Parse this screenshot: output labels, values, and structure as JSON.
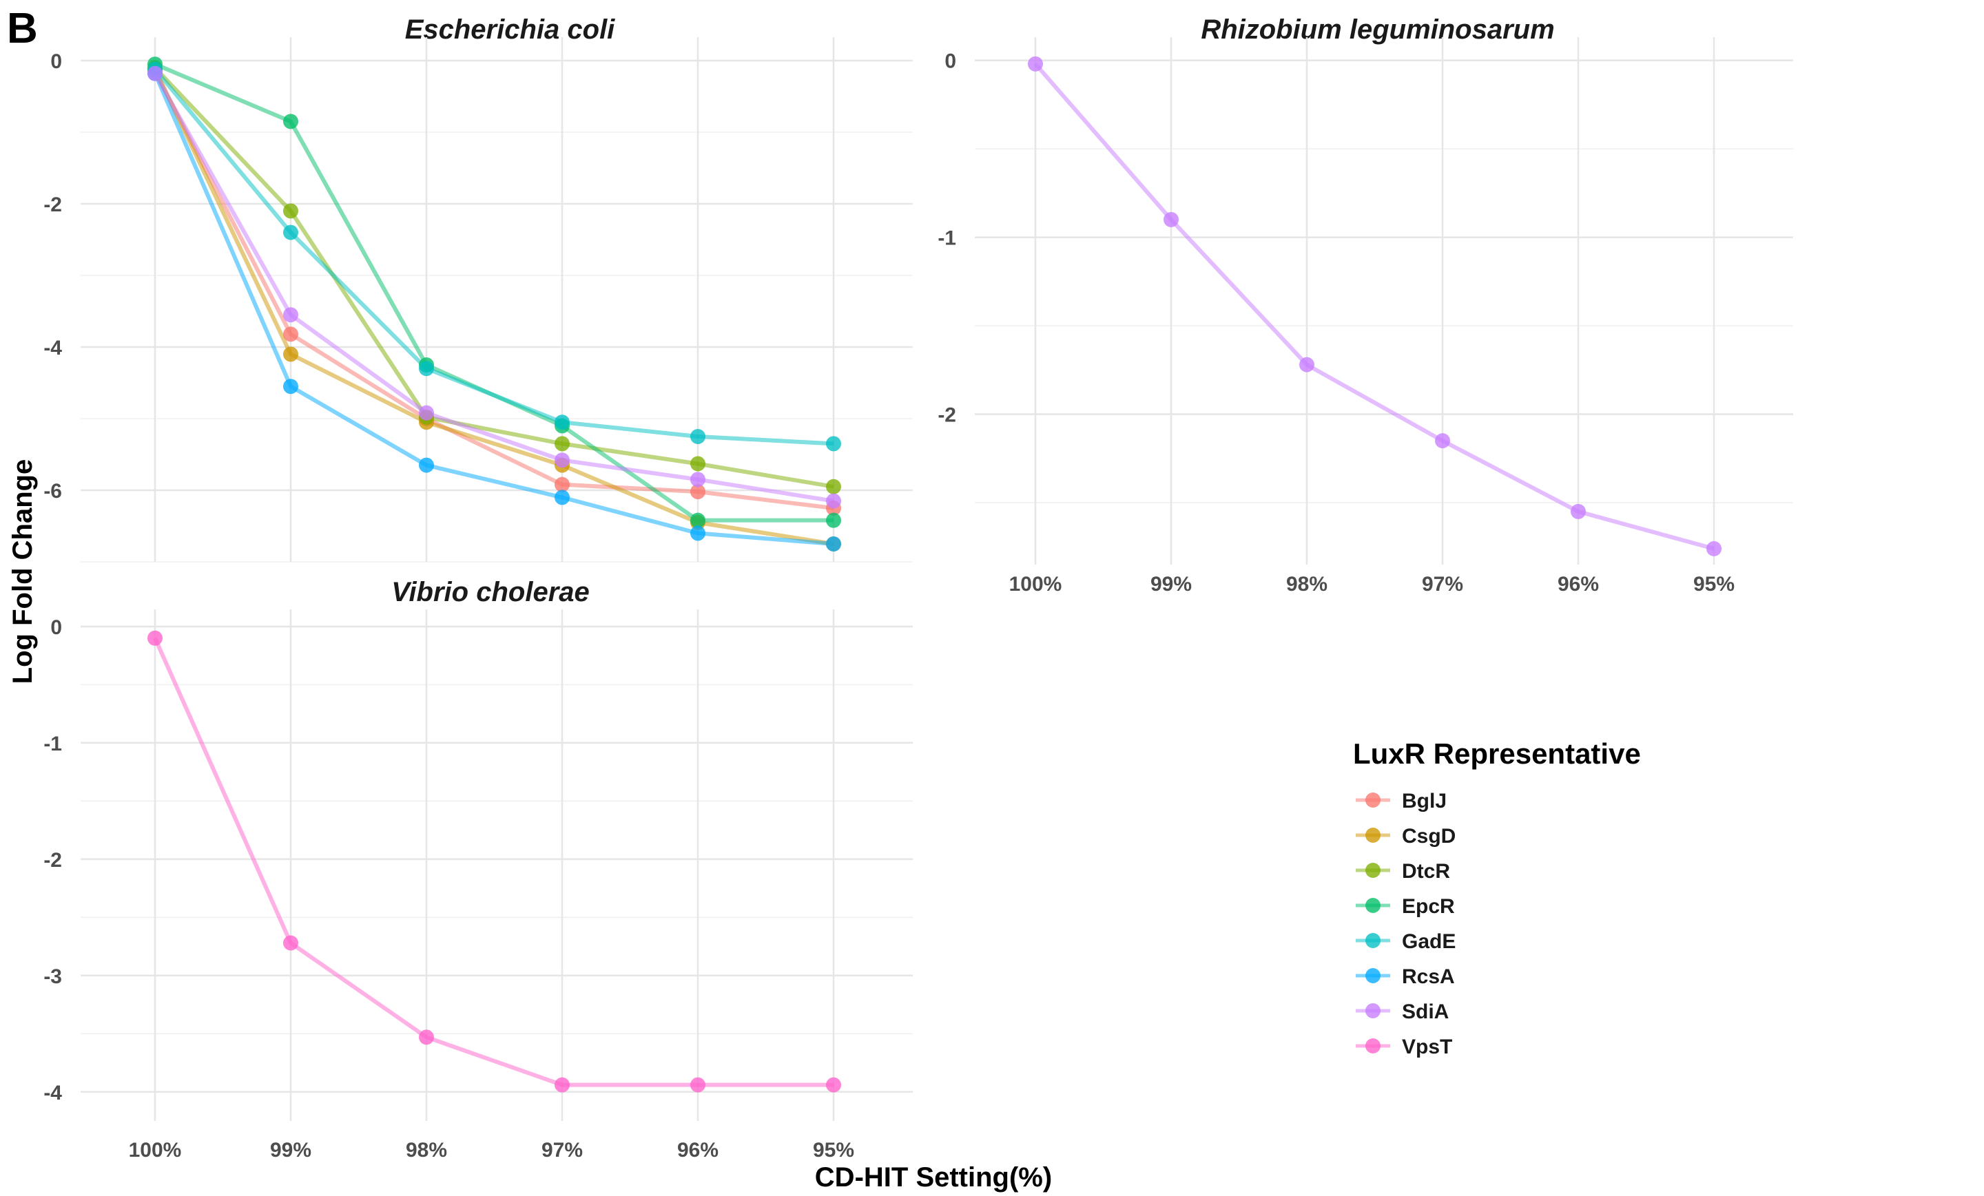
{
  "panel_label": "B",
  "chart_data": {
    "type": "line",
    "x_axis_title": "CD-HIT Setting(%)",
    "y_axis_title": "Log Fold Change",
    "categories": [
      "100%",
      "99%",
      "98%",
      "97%",
      "96%",
      "95%"
    ],
    "grid": true,
    "legend": {
      "title": "LuxR Representative",
      "placement": "right",
      "entries": [
        {
          "name": "BglJ",
          "color": "#F8766D"
        },
        {
          "name": "CsgD",
          "color": "#CD9600"
        },
        {
          "name": "DtcR",
          "color": "#7CAE00"
        },
        {
          "name": "EpcR",
          "color": "#00BE67"
        },
        {
          "name": "GadE",
          "color": "#00BFC4"
        },
        {
          "name": "RcsA",
          "color": "#00A9FF"
        },
        {
          "name": "SdiA",
          "color": "#C77CFF"
        },
        {
          "name": "VpsT",
          "color": "#FF61CC"
        }
      ]
    },
    "facets": [
      {
        "title": "Escherichia coli",
        "ylim": [
          -7,
          0.25
        ],
        "y_ticks": [
          0,
          -2,
          -4,
          -6
        ],
        "y_tick_labels": [
          "0",
          "-2",
          "-4",
          "-6"
        ],
        "series": [
          {
            "name": "BglJ",
            "color": "#F8766D",
            "values": [
              -0.15,
              -3.82,
              -5.0,
              -5.92,
              -6.02,
              -6.25
            ]
          },
          {
            "name": "CsgD",
            "color": "#CD9600",
            "values": [
              -0.12,
              -4.1,
              -5.05,
              -5.65,
              -6.45,
              -6.75
            ]
          },
          {
            "name": "DtcR",
            "color": "#7CAE00",
            "values": [
              -0.1,
              -2.1,
              -4.98,
              -5.35,
              -5.63,
              -5.95
            ]
          },
          {
            "name": "EpcR",
            "color": "#00BE67",
            "values": [
              -0.05,
              -0.85,
              -4.25,
              -5.1,
              -6.42,
              -6.42
            ]
          },
          {
            "name": "GadE",
            "color": "#00BFC4",
            "values": [
              -0.12,
              -2.4,
              -4.3,
              -5.05,
              -5.25,
              -5.35
            ]
          },
          {
            "name": "RcsA",
            "color": "#00A9FF",
            "values": [
              -0.18,
              -4.55,
              -5.65,
              -6.1,
              -6.6,
              -6.75
            ]
          },
          {
            "name": "SdiA",
            "color": "#C77CFF",
            "values": [
              -0.18,
              -3.55,
              -4.92,
              -5.58,
              -5.85,
              -6.15
            ]
          }
        ]
      },
      {
        "title": "Rhizobium leguminosarum",
        "ylim": [
          -2.85,
          0.1
        ],
        "y_ticks": [
          0,
          -1,
          -2
        ],
        "y_tick_labels": [
          "0",
          "-1",
          "-2"
        ],
        "series": [
          {
            "name": "SdiA",
            "color": "#C77CFF",
            "values": [
              -0.02,
              -0.9,
              -1.72,
              -2.15,
              -2.55,
              -2.76
            ]
          }
        ]
      },
      {
        "title": "Vibrio cholerae",
        "ylim": [
          -4.25,
          0.1
        ],
        "y_ticks": [
          0,
          -1,
          -2,
          -3,
          -4
        ],
        "y_tick_labels": [
          "0",
          "-1",
          "-2",
          "-3",
          "-4"
        ],
        "series": [
          {
            "name": "VpsT",
            "color": "#FF61CC",
            "values": [
              -0.1,
              -2.72,
              -3.53,
              -3.94,
              -3.94,
              -3.94
            ]
          }
        ]
      }
    ]
  }
}
